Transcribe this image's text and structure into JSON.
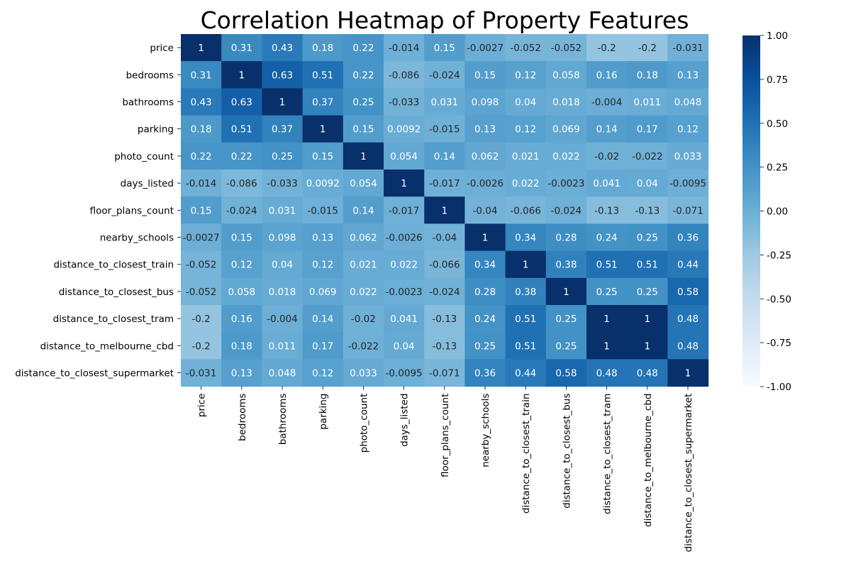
{
  "chart_data": {
    "type": "heatmap",
    "title": "Correlation Heatmap of Property Features",
    "xlabel": "",
    "ylabel": "",
    "labels": [
      "price",
      "bedrooms",
      "bathrooms",
      "parking",
      "photo_count",
      "days_listed",
      "floor_plans_count",
      "nearby_schools",
      "distance_to_closest_train",
      "distance_to_closest_bus",
      "distance_to_closest_tram",
      "distance_to_melbourne_cbd",
      "distance_to_closest_supermarket"
    ],
    "matrix": [
      [
        "1",
        "0.31",
        "0.43",
        "0.18",
        "0.22",
        "-0.014",
        "0.15",
        "-0.0027",
        "-0.052",
        "-0.052",
        "-0.2",
        "-0.2",
        "-0.031"
      ],
      [
        "0.31",
        "1",
        "0.63",
        "0.51",
        "0.22",
        "-0.086",
        "-0.024",
        "0.15",
        "0.12",
        "0.058",
        "0.16",
        "0.18",
        "0.13"
      ],
      [
        "0.43",
        "0.63",
        "1",
        "0.37",
        "0.25",
        "-0.033",
        "0.031",
        "0.098",
        "0.04",
        "0.018",
        "-0.004",
        "0.011",
        "0.048"
      ],
      [
        "0.18",
        "0.51",
        "0.37",
        "1",
        "0.15",
        "0.0092",
        "-0.015",
        "0.13",
        "0.12",
        "0.069",
        "0.14",
        "0.17",
        "0.12"
      ],
      [
        "0.22",
        "0.22",
        "0.25",
        "0.15",
        "1",
        "0.054",
        "0.14",
        "0.062",
        "0.021",
        "0.022",
        "-0.02",
        "-0.022",
        "0.033"
      ],
      [
        "-0.014",
        "-0.086",
        "-0.033",
        "0.0092",
        "0.054",
        "1",
        "-0.017",
        "-0.0026",
        "0.022",
        "-0.0023",
        "0.041",
        "0.04",
        "-0.0095"
      ],
      [
        "0.15",
        "-0.024",
        "0.031",
        "-0.015",
        "0.14",
        "-0.017",
        "1",
        "-0.04",
        "-0.066",
        "-0.024",
        "-0.13",
        "-0.13",
        "-0.071"
      ],
      [
        "-0.0027",
        "0.15",
        "0.098",
        "0.13",
        "0.062",
        "-0.0026",
        "-0.04",
        "1",
        "0.34",
        "0.28",
        "0.24",
        "0.25",
        "0.36"
      ],
      [
        "-0.052",
        "0.12",
        "0.04",
        "0.12",
        "0.021",
        "0.022",
        "-0.066",
        "0.34",
        "1",
        "0.38",
        "0.51",
        "0.51",
        "0.44"
      ],
      [
        "-0.052",
        "0.058",
        "0.018",
        "0.069",
        "0.022",
        "-0.0023",
        "-0.024",
        "0.28",
        "0.38",
        "1",
        "0.25",
        "0.25",
        "0.58"
      ],
      [
        "-0.2",
        "0.16",
        "-0.004",
        "0.14",
        "-0.02",
        "0.041",
        "-0.13",
        "0.24",
        "0.51",
        "0.25",
        "1",
        "1",
        "0.48"
      ],
      [
        "-0.2",
        "0.18",
        "0.011",
        "0.17",
        "-0.022",
        "0.04",
        "-0.13",
        "0.25",
        "0.51",
        "0.25",
        "1",
        "1",
        "0.48"
      ],
      [
        "-0.031",
        "0.13",
        "0.048",
        "0.12",
        "0.033",
        "-0.0095",
        "-0.071",
        "0.36",
        "0.44",
        "0.58",
        "0.48",
        "0.48",
        "1"
      ]
    ],
    "value_range": [
      -1,
      1
    ],
    "colormap": "Blues",
    "colormap_stops": [
      "#f7fbff",
      "#deebf7",
      "#c6dbef",
      "#9ecae1",
      "#6baed6",
      "#4292c6",
      "#2171b5",
      "#08519c",
      "#08306b"
    ],
    "colorbar_ticks": [
      "1.00",
      "0.75",
      "0.50",
      "0.25",
      "0.00",
      "-0.25",
      "-0.50",
      "-0.75",
      "-1.00"
    ],
    "grid": false,
    "legend": "right (colorbar)"
  }
}
